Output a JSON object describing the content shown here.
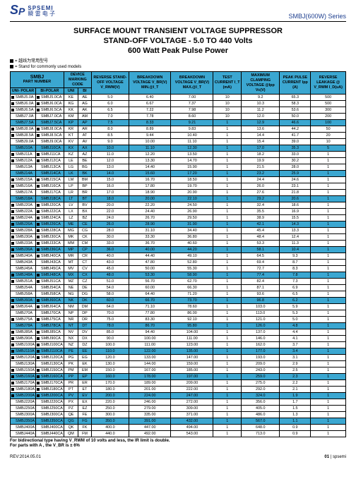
{
  "header": {
    "logo_en": "SPSEMI",
    "logo_cn": "瞬 雷 电 子",
    "series": "SMBJ(600W) Series"
  },
  "title": {
    "line1": "SURFACE MOUNT TRANSIENT VOLTAGE SUPPRESSOR",
    "line2": "STAND-OFF VOLTAGE - 5.0 TO 440 Volts",
    "line3": "600 Watt Peak Pulse Power"
  },
  "notes": {
    "n1": "= 越线为常用型号",
    "n2": "= Stand for commonly used models"
  },
  "columns": [
    {
      "top": "SMBJ",
      "sub": "PART NUMBER",
      "split": [
        "UNI- POLAR",
        "BI-POLAR"
      ]
    },
    {
      "top": "DEVICE MARKING CODE",
      "split": [
        "UNI",
        "BI"
      ]
    },
    {
      "top": "REVERSE STAND-OFF VOLTAGE V_RWM(V)"
    },
    {
      "top": "BREAKDOWN VOLTAGE V_BR(V) MIN.@I_T"
    },
    {
      "top": "BREAKDOWN VOLTAGE V_BR(V) MAX.@I_T"
    },
    {
      "top": "TEST CURRENT I_T (mA)"
    },
    {
      "top": "MAXIMUM CLAMPING VOLTAGE @Ipp Vc(V)"
    },
    {
      "top": "PEAK PULSE CURRENT Ipp (A)"
    },
    {
      "top": "REVERSE LEAKAGE @ V_RWM I_D(uA)"
    }
  ],
  "rows": [
    {
      "m": true,
      "hl": false,
      "u": "SMBJ5.0A",
      "b": "SMBJ5.0CA",
      "mu": "KE",
      "mb": "AE",
      "v": "5.0",
      "bmin": "6.40",
      "bmax": "7.00",
      "it": "10",
      "vc": "9.2",
      "ipp": "65.3",
      "id": "500"
    },
    {
      "m": true,
      "hl": false,
      "u": "SMBJ6.0A",
      "b": "SMBJ6.0CA",
      "mu": "KG",
      "mb": "AG",
      "v": "6.0",
      "bmin": "6.67",
      "bmax": "7.37",
      "it": "10",
      "vc": "10.3",
      "ipp": "58.3",
      "id": "500"
    },
    {
      "m": true,
      "hl": false,
      "u": "SMBJ6.5A",
      "b": "SMBJ6.5CA",
      "mu": "KK",
      "mb": "AK",
      "v": "6.5",
      "bmin": "7.22",
      "bmax": "7.98",
      "it": "10",
      "vc": "11.2",
      "ipp": "53.6",
      "id": "300"
    },
    {
      "m": false,
      "hl": false,
      "u": "SMBJ7.0A",
      "b": "SMBJ7.0CA",
      "mu": "KM",
      "mb": "AM",
      "v": "7.0",
      "bmin": "7.78",
      "bmax": "8.60",
      "it": "10",
      "vc": "12.0",
      "ipp": "50.0",
      "id": "200"
    },
    {
      "m": false,
      "hl": true,
      "u": "SMBJ7.5A",
      "b": "SMBJ7.5CA",
      "mu": "KP",
      "mb": "AP",
      "v": "7.5",
      "bmin": "8.33",
      "bmax": "9.21",
      "it": "1",
      "vc": "12.9",
      "ipp": "46.6",
      "id": "100"
    },
    {
      "m": true,
      "hl": false,
      "u": "SMBJ8.0A",
      "b": "SMBJ8.0CA",
      "mu": "KR",
      "mb": "AR",
      "v": "8.0",
      "bmin": "8.89",
      "bmax": "9.83",
      "it": "1",
      "vc": "13.6",
      "ipp": "44.2",
      "id": "50"
    },
    {
      "m": true,
      "hl": false,
      "u": "SMBJ8.5A",
      "b": "SMBJ8.5CA",
      "mu": "KT",
      "mb": "AT",
      "v": "8.5",
      "bmin": "9.44",
      "bmax": "10.40",
      "it": "1",
      "vc": "14.4",
      "ipp": "41.7",
      "id": "20"
    },
    {
      "m": false,
      "hl": false,
      "u": "SMBJ9.0A",
      "b": "SMBJ9.0CA",
      "mu": "KV",
      "mb": "AV",
      "v": "9.0",
      "bmin": "10.00",
      "bmax": "11.10",
      "it": "1",
      "vc": "15.4",
      "ipp": "39.0",
      "id": "10"
    },
    {
      "m": false,
      "hl": true,
      "u": "SMBJ10A",
      "b": "SMBJ10CA",
      "mu": "KX",
      "mb": "AX",
      "v": "10.0",
      "bmin": "11.10",
      "bmax": "12.30",
      "it": "1",
      "vc": "17.0",
      "ipp": "35.3",
      "id": "5"
    },
    {
      "m": true,
      "hl": false,
      "u": "SMBJ11A",
      "b": "SMBJ11CA",
      "mu": "KZ",
      "mb": "AZ",
      "v": "11.0",
      "bmin": "12.20",
      "bmax": "13.50",
      "it": "1",
      "vc": "18.2",
      "ipp": "33.0",
      "id": "1"
    },
    {
      "m": true,
      "hl": false,
      "u": "SMBJ12A",
      "b": "SMBJ12CA",
      "mu": "LE",
      "mb": "BE",
      "v": "12.0",
      "bmin": "13.30",
      "bmax": "14.70",
      "it": "1",
      "vc": "19.9",
      "ipp": "30.2",
      "id": "1"
    },
    {
      "m": false,
      "hl": false,
      "u": "SMBJ13A",
      "b": "SMBJ13CA",
      "mu": "LG",
      "mb": "BG",
      "v": "13.0",
      "bmin": "14.40",
      "bmax": "15.90",
      "it": "1",
      "vc": "21.5",
      "ipp": "28.0",
      "id": "1"
    },
    {
      "m": false,
      "hl": true,
      "u": "SMBJ14A",
      "b": "SMBJ14CA",
      "mu": "LK",
      "mb": "BK",
      "v": "14.0",
      "bmin": "15.60",
      "bmax": "17.20",
      "it": "1",
      "vc": "23.2",
      "ipp": "25.9",
      "id": "1"
    },
    {
      "m": true,
      "hl": false,
      "u": "SMBJ15A",
      "b": "SMBJ15CA",
      "mu": "LM",
      "mb": "BM",
      "v": "15.0",
      "bmin": "16.70",
      "bmax": "18.50",
      "it": "1",
      "vc": "24.4",
      "ipp": "24.6",
      "id": "1"
    },
    {
      "m": true,
      "hl": false,
      "u": "SMBJ16A",
      "b": "SMBJ16CA",
      "mu": "LP",
      "mb": "BP",
      "v": "16.0",
      "bmin": "17.80",
      "bmax": "19.70",
      "it": "1",
      "vc": "26.0",
      "ipp": "23.1",
      "id": "1"
    },
    {
      "m": false,
      "hl": false,
      "u": "SMBJ17A",
      "b": "SMBJ17CA",
      "mu": "LR",
      "mb": "BR",
      "v": "17.0",
      "bmin": "18.90",
      "bmax": "20.90",
      "it": "1",
      "vc": "27.6",
      "ipp": "21.8",
      "id": "1"
    },
    {
      "m": false,
      "hl": true,
      "u": "SMBJ18A",
      "b": "SMBJ18CA",
      "mu": "LT",
      "mb": "BT",
      "v": "18.0",
      "bmin": "20.00",
      "bmax": "22.10",
      "it": "1",
      "vc": "29.2",
      "ipp": "20.6",
      "id": "1"
    },
    {
      "m": true,
      "hl": false,
      "u": "SMBJ20A",
      "b": "SMBJ20CA",
      "mu": "LV",
      "mb": "BV",
      "v": "20.0",
      "bmin": "22.20",
      "bmax": "24.50",
      "it": "1",
      "vc": "32.4",
      "ipp": "18.6",
      "id": "1"
    },
    {
      "m": true,
      "hl": false,
      "u": "SMBJ22A",
      "b": "SMBJ22CA",
      "mu": "LX",
      "mb": "BX",
      "v": "22.0",
      "bmin": "24.40",
      "bmax": "26.90",
      "it": "1",
      "vc": "35.5",
      "ipp": "16.9",
      "id": "1"
    },
    {
      "m": true,
      "hl": false,
      "u": "SMBJ24A",
      "b": "SMBJ24CA",
      "mu": "LZ",
      "mb": "BZ",
      "v": "24.0",
      "bmin": "26.70",
      "bmax": "29.50",
      "it": "1",
      "vc": "38.9",
      "ipp": "15.5",
      "id": "1"
    },
    {
      "m": true,
      "hl": true,
      "u": "SMBJ26A",
      "b": "SMBJ26CA",
      "mu": "ME",
      "mb": "CE",
      "v": "26.0",
      "bmin": "28.90",
      "bmax": "31.90",
      "it": "1",
      "vc": "42.1",
      "ipp": "14.3",
      "id": "1"
    },
    {
      "m": true,
      "hl": false,
      "u": "SMBJ28A",
      "b": "SMBJ28CA",
      "mu": "MG",
      "mb": "CG",
      "v": "28.0",
      "bmin": "31.10",
      "bmax": "34.40",
      "it": "1",
      "vc": "45.4",
      "ipp": "13.3",
      "id": "1"
    },
    {
      "m": true,
      "hl": false,
      "u": "SMBJ30A",
      "b": "SMBJ30CA",
      "mu": "MK",
      "mb": "CK",
      "v": "30.0",
      "bmin": "33.30",
      "bmax": "36.80",
      "it": "1",
      "vc": "48.4",
      "ipp": "12.4",
      "id": "1"
    },
    {
      "m": true,
      "hl": false,
      "u": "SMBJ33A",
      "b": "SMBJ33CA",
      "mu": "MM",
      "mb": "CM",
      "v": "33.0",
      "bmin": "36.70",
      "bmax": "40.60",
      "it": "1",
      "vc": "53.3",
      "ipp": "11.3",
      "id": "1"
    },
    {
      "m": true,
      "hl": true,
      "u": "SMBJ36A",
      "b": "SMBJ36CA",
      "mu": "MP",
      "mb": "CP",
      "v": "36.0",
      "bmin": "40.00",
      "bmax": "44.20",
      "it": "1",
      "vc": "58.1",
      "ipp": "10.4",
      "id": "1"
    },
    {
      "m": true,
      "hl": false,
      "u": "SMBJ40A",
      "b": "SMBJ40CA",
      "mu": "MR",
      "mb": "CR",
      "v": "40.0",
      "bmin": "44.40",
      "bmax": "49.10",
      "it": "1",
      "vc": "64.5",
      "ipp": "9.3",
      "id": "1"
    },
    {
      "m": false,
      "hl": false,
      "u": "SMBJ43A",
      "b": "SMBJ43CA",
      "mu": "MT",
      "mb": "CT",
      "v": "43.0",
      "bmin": "47.80",
      "bmax": "52.80",
      "it": "1",
      "vc": "69.4",
      "ipp": "8.7",
      "id": "1"
    },
    {
      "m": false,
      "hl": false,
      "u": "SMBJ45A",
      "b": "SMBJ45CA",
      "mu": "MV",
      "mb": "CV",
      "v": "45.0",
      "bmin": "50.00",
      "bmax": "55.30",
      "it": "1",
      "vc": "72.7",
      "ipp": "8.3",
      "id": "1"
    },
    {
      "m": true,
      "hl": true,
      "u": "SMBJ48A",
      "b": "SMBJ48CA",
      "mu": "MX",
      "mb": "CX",
      "v": "48.0",
      "bmin": "53.30",
      "bmax": "58.90",
      "it": "1",
      "vc": "77.4",
      "ipp": "7.8",
      "id": "1"
    },
    {
      "m": true,
      "hl": false,
      "u": "SMBJ51A",
      "b": "SMBJ51CA",
      "mu": "MZ",
      "mb": "CZ",
      "v": "51.0",
      "bmin": "56.70",
      "bmax": "62.70",
      "it": "1",
      "vc": "82.4",
      "ipp": "7.3",
      "id": "1"
    },
    {
      "m": false,
      "hl": false,
      "u": "SMBJ54A",
      "b": "SMBJ54CA",
      "mu": "NE",
      "mb": "DE",
      "v": "54.0",
      "bmin": "60.00",
      "bmax": "66.30",
      "it": "1",
      "vc": "87.1",
      "ipp": "6.9",
      "id": "1"
    },
    {
      "m": false,
      "hl": false,
      "u": "SMBJ58A",
      "b": "SMBJ58CA",
      "mu": "NG",
      "mb": "DG",
      "v": "58.0",
      "bmin": "64.40",
      "bmax": "71.20",
      "it": "1",
      "vc": "93.6",
      "ipp": "6.5",
      "id": "1"
    },
    {
      "m": true,
      "hl": true,
      "u": "SMBJ60A",
      "b": "SMBJ60CA",
      "mu": "NK",
      "mb": "DK",
      "v": "60.0",
      "bmin": "66.70",
      "bmax": "73.70",
      "it": "1",
      "vc": "96.8",
      "ipp": "6.2",
      "id": "1"
    },
    {
      "m": true,
      "hl": false,
      "u": "SMBJ64A",
      "b": "SMBJ64CA",
      "mu": "NM",
      "mb": "DM",
      "v": "64.0",
      "bmin": "71.10",
      "bmax": "78.60",
      "it": "1",
      "vc": "103.0",
      "ipp": "5.9",
      "id": "1"
    },
    {
      "m": false,
      "hl": false,
      "u": "SMBJ70A",
      "b": "SMBJ70CA",
      "mu": "NP",
      "mb": "DP",
      "v": "70.0",
      "bmin": "77.80",
      "bmax": "86.00",
      "it": "1",
      "vc": "113.0",
      "ipp": "5.3",
      "id": "1"
    },
    {
      "m": true,
      "hl": false,
      "u": "SMBJ75A",
      "b": "SMBJ75CA",
      "mu": "NR",
      "mb": "DR",
      "v": "75.0",
      "bmin": "83.30",
      "bmax": "92.10",
      "it": "1",
      "vc": "121.0",
      "ipp": "5.0",
      "id": "1"
    },
    {
      "m": false,
      "hl": true,
      "u": "SMBJ78A",
      "b": "SMBJ78CA",
      "mu": "NT",
      "mb": "DT",
      "v": "78.0",
      "bmin": "86.70",
      "bmax": "95.80",
      "it": "1",
      "vc": "126.0",
      "ipp": "4.8",
      "id": "1"
    },
    {
      "m": true,
      "hl": false,
      "u": "SMBJ85A",
      "b": "SMBJ85CA",
      "mu": "NV",
      "mb": "DV",
      "v": "85.0",
      "bmin": "94.40",
      "bmax": "104.00",
      "it": "1",
      "vc": "137.0",
      "ipp": "4.4",
      "id": "1"
    },
    {
      "m": true,
      "hl": false,
      "u": "SMBJ90A",
      "b": "SMBJ90CA",
      "mu": "NX",
      "mb": "DX",
      "v": "90.0",
      "bmin": "100.00",
      "bmax": "111.00",
      "it": "1",
      "vc": "146.0",
      "ipp": "4.1",
      "id": "1"
    },
    {
      "m": true,
      "hl": false,
      "u": "SMBJ100A",
      "b": "SMBJ100CA",
      "mu": "NZ",
      "mb": "DZ",
      "v": "100.0",
      "bmin": "111.00",
      "bmax": "123.00",
      "it": "1",
      "vc": "162.0",
      "ipp": "3.7",
      "id": "1"
    },
    {
      "m": true,
      "hl": true,
      "u": "SMBJ110A",
      "b": "SMBJ110CA",
      "mu": "PE",
      "mb": "EE",
      "v": "110.0",
      "bmin": "122.00",
      "bmax": "135.00",
      "it": "1",
      "vc": "177.0",
      "ipp": "3.4",
      "id": "1"
    },
    {
      "m": true,
      "hl": false,
      "u": "SMBJ120A",
      "b": "SMBJ120CA",
      "mu": "PG",
      "mb": "EG",
      "v": "120.0",
      "bmin": "133.00",
      "bmax": "147.00",
      "it": "1",
      "vc": "193.0",
      "ipp": "3.1",
      "id": "1"
    },
    {
      "m": false,
      "hl": false,
      "u": "SMBJ130A",
      "b": "SMBJ130CA",
      "mu": "PK",
      "mb": "EK",
      "v": "130.0",
      "bmin": "144.00",
      "bmax": "159.00",
      "it": "1",
      "vc": "209.0",
      "ipp": "2.9",
      "id": "1"
    },
    {
      "m": true,
      "hl": false,
      "u": "SMBJ150A",
      "b": "SMBJ150CA",
      "mu": "PM",
      "mb": "EM",
      "v": "150.0",
      "bmin": "167.00",
      "bmax": "185.00",
      "it": "1",
      "vc": "243.0",
      "ipp": "2.5",
      "id": "1"
    },
    {
      "m": true,
      "hl": true,
      "u": "SMBJ160A",
      "b": "SMBJ160CA",
      "mu": "PP",
      "mb": "EP",
      "v": "160.0",
      "bmin": "178.00",
      "bmax": "197.00",
      "it": "1",
      "vc": "259.0",
      "ipp": "2.3",
      "id": "1"
    },
    {
      "m": true,
      "hl": false,
      "u": "SMBJ170A",
      "b": "SMBJ170CA",
      "mu": "PR",
      "mb": "ER",
      "v": "170.0",
      "bmin": "189.00",
      "bmax": "209.00",
      "it": "1",
      "vc": "275.0",
      "ipp": "2.2",
      "id": "1"
    },
    {
      "m": true,
      "hl": false,
      "u": "SMBJ180A",
      "b": "SMBJ180CA",
      "mu": "PT",
      "mb": "ET",
      "v": "180.0",
      "bmin": "201.00",
      "bmax": "222.00",
      "it": "1",
      "vc": "292.0",
      "ipp": "2.1",
      "id": "1"
    },
    {
      "m": true,
      "hl": true,
      "u": "SMBJ200A",
      "b": "SMBJ200CA",
      "mu": "PV",
      "mb": "EV",
      "v": "200.0",
      "bmin": "224.00",
      "bmax": "247.00",
      "it": "1",
      "vc": "324.0",
      "ipp": "1.9",
      "id": "1"
    },
    {
      "m": false,
      "hl": false,
      "u": "SMBJ220A",
      "b": "SMBJ220CA",
      "mu": "PX",
      "mb": "EX",
      "v": "220.0",
      "bmin": "246.00",
      "bmax": "272.00",
      "it": "1",
      "vc": "356.0",
      "ipp": "1.7",
      "id": "1"
    },
    {
      "m": false,
      "hl": false,
      "u": "SMBJ250A",
      "b": "SMBJ250CA",
      "mu": "PZ",
      "mb": "EZ",
      "v": "250.0",
      "bmin": "279.00",
      "bmax": "309.00",
      "it": "1",
      "vc": "405.0",
      "ipp": "1.5",
      "id": "1"
    },
    {
      "m": false,
      "hl": false,
      "u": "SMBJ300A",
      "b": "SMBJ300CA",
      "mu": "QE",
      "mb": "FE",
      "v": "300.0",
      "bmin": "335.00",
      "bmax": "371.00",
      "it": "1",
      "vc": "486.0",
      "ipp": "1.3",
      "id": "1"
    },
    {
      "m": false,
      "hl": true,
      "u": "SMBJ350A",
      "b": "SMBJ350CA",
      "mu": "QG",
      "mb": "FG",
      "v": "350.0",
      "bmin": "391.00",
      "bmax": "432.00",
      "it": "1",
      "vc": "567.0",
      "ipp": "1.1",
      "id": "1"
    },
    {
      "m": false,
      "hl": false,
      "u": "SMBJ400A",
      "b": "SMBJ400CA",
      "mu": "QK",
      "mb": "FK",
      "v": "400.0",
      "bmin": "447.00",
      "bmax": "494.00",
      "it": "1",
      "vc": "648.0",
      "ipp": "0.9",
      "id": "1"
    },
    {
      "m": false,
      "hl": false,
      "u": "SMBJ440A",
      "b": "SMBJ440CA",
      "mu": "QM",
      "mb": "FM",
      "v": "440.0",
      "bmin": "492.00",
      "bmax": "543.00",
      "it": "1",
      "vc": "713.0",
      "ipp": "0.9",
      "id": "1"
    }
  ],
  "footer": {
    "note1": "For bidirectional type having V_RWM of 10 volts and less, the IR limit is double.",
    "note2": "For parts with A , the V_BR is ± 6%",
    "rev": "REV:2014.05.01",
    "page": "01",
    "brand": "spsemi"
  },
  "style": {
    "header_bg": "#3ba7d1",
    "row_hl_bg": "#3ba7d1",
    "text_color": "#000000",
    "brand_color": "#1e3f8f"
  }
}
